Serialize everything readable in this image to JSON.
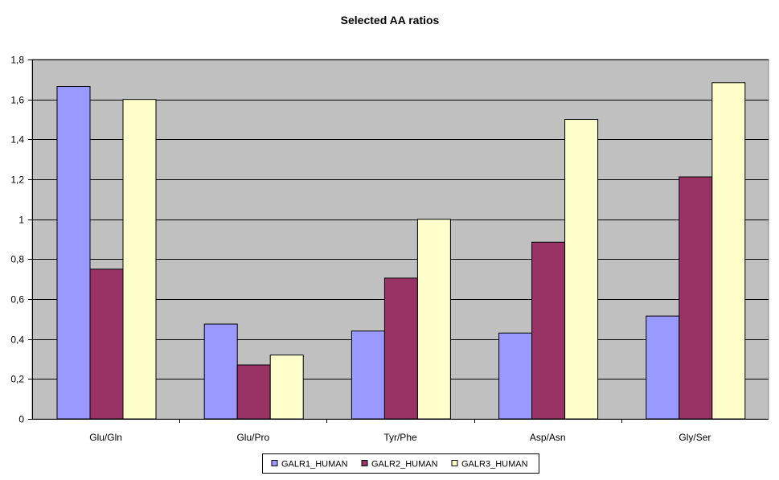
{
  "chart_data": {
    "type": "bar",
    "title": "Selected AA ratios",
    "xlabel": "",
    "ylabel": "",
    "categories": [
      "Glu/Gln",
      "Glu/Pro",
      "Tyr/Phe",
      "Asp/Asn",
      "Gly/Ser"
    ],
    "series": [
      {
        "name": "GALR1_HUMAN",
        "values": [
          1.665,
          0.475,
          0.44,
          0.43,
          0.515
        ],
        "color": "#9999ff"
      },
      {
        "name": "GALR2_HUMAN",
        "values": [
          0.75,
          0.27,
          0.705,
          0.885,
          1.212
        ],
        "color": "#993366"
      },
      {
        "name": "GALR3_HUMAN",
        "values": [
          1.6,
          0.32,
          1.0,
          1.5,
          1.684
        ],
        "color": "#ffffcc"
      }
    ],
    "ylim": [
      0,
      1.8
    ],
    "yticks": [
      0,
      0.2,
      0.4,
      0.6,
      0.8,
      1,
      1.2,
      1.4,
      1.6,
      1.8
    ],
    "ytick_labels": [
      "0",
      "0,2",
      "0,4",
      "0,6",
      "0,8",
      "1",
      "1,2",
      "1,4",
      "1,6",
      "1,8"
    ],
    "grid": true,
    "plot_background": "#c0c0c0",
    "gridline_color": "#000000",
    "legend_position": "bottom-center"
  }
}
